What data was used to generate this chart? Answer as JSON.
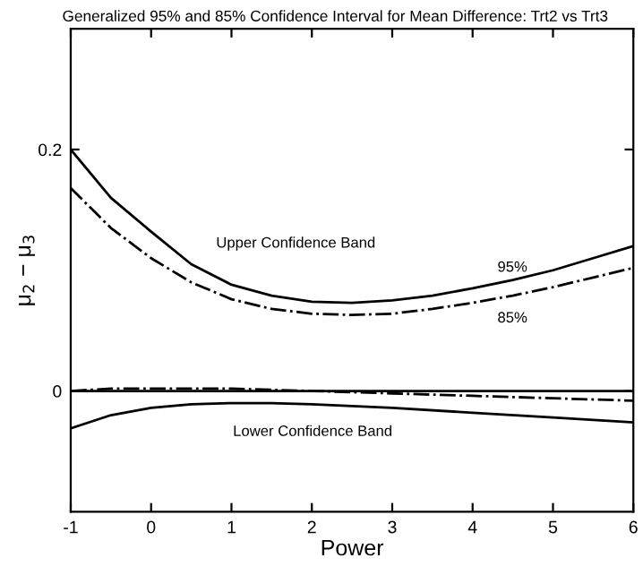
{
  "chart_data": {
    "type": "line",
    "title": "Generalized 95% and 85% Confidence Interval for Mean Difference: Trt2 vs Trt3",
    "xlabel": "Power",
    "ylabel": "μ$_{2}$ − μ$_{3}$",
    "xlim": [
      -1,
      6
    ],
    "ylim": [
      -0.1,
      0.3
    ],
    "xticks": [
      -1,
      0,
      1,
      2,
      3,
      4,
      5,
      6
    ],
    "yticks": [
      0,
      0.2
    ],
    "grid": false,
    "legend": false,
    "marker": "none",
    "series": [
      {
        "color": "#000000",
        "line_style": "solid",
        "x": [
          -1,
          -0.5,
          0,
          0.5,
          1,
          1.5,
          2,
          2.5,
          3,
          3.5,
          4,
          4.5,
          5,
          5.5,
          6
        ],
        "values": [
          0.2,
          0.16,
          0.132,
          0.105,
          0.088,
          0.079,
          0.074,
          0.073,
          0.075,
          0.079,
          0.085,
          0.092,
          0.1,
          0.11,
          0.12
        ]
      },
      {
        "color": "#000000",
        "line_style": "dashdot",
        "x": [
          -1,
          -0.5,
          0,
          0.5,
          1,
          1.5,
          2,
          2.5,
          3,
          3.5,
          4,
          4.5,
          5,
          5.5,
          6
        ],
        "values": [
          0.168,
          0.135,
          0.11,
          0.09,
          0.076,
          0.068,
          0.064,
          0.063,
          0.064,
          0.068,
          0.073,
          0.079,
          0.086,
          0.094,
          0.102
        ]
      },
      {
        "color": "#000000",
        "line_style": "solid",
        "x": [
          -1,
          -0.5,
          0,
          0.5,
          1,
          1.5,
          2,
          3,
          4,
          5,
          6
        ],
        "values": [
          -0.031,
          -0.02,
          -0.014,
          -0.011,
          -0.01,
          -0.01,
          -0.011,
          -0.014,
          -0.018,
          -0.022,
          -0.026
        ]
      },
      {
        "color": "#000000",
        "line_style": "dashdot",
        "x": [
          -1,
          -0.5,
          0,
          1,
          1.5,
          2,
          3,
          4,
          5,
          6
        ],
        "values": [
          0.0,
          0.002,
          0.002,
          0.002,
          0.001,
          0.0,
          -0.002,
          -0.004,
          -0.006,
          -0.008
        ]
      }
    ],
    "ref_lines": [
      {
        "axis": "y",
        "value": 0,
        "color": "#000000",
        "line_style": "solid"
      }
    ],
    "annotations": [
      "Upper Confidence Band",
      "95%",
      "85%",
      "Lower Confidence Band"
    ]
  }
}
